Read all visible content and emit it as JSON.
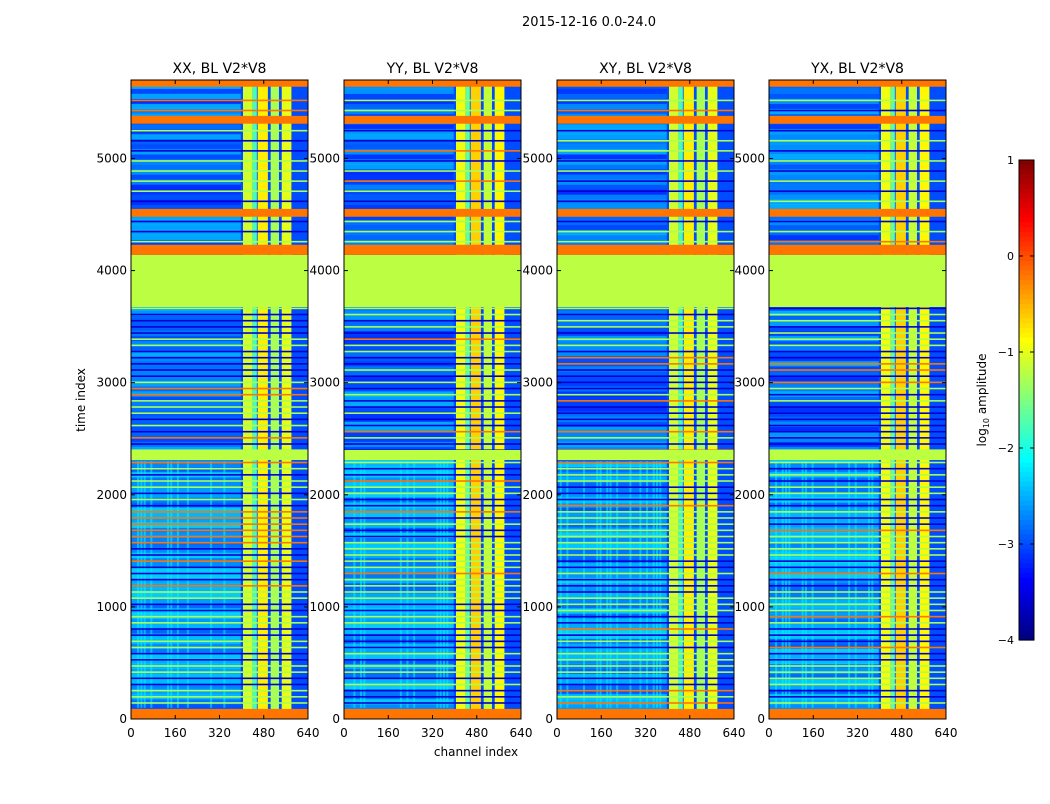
{
  "chart_data": {
    "type": "heatmap",
    "title": "2015-12-16 0.0-24.0",
    "xlabel": "channel index",
    "ylabel": "time index",
    "xlim": [
      0,
      640
    ],
    "ylim": [
      0,
      5700
    ],
    "xticks": [
      0,
      160,
      320,
      480,
      640
    ],
    "yticks": [
      0,
      1000,
      2000,
      3000,
      4000,
      5000
    ],
    "panels": [
      {
        "title": "XX, BL V2*V8"
      },
      {
        "title": "YY, BL V2*V8"
      },
      {
        "title": "XY, BL V2*V8"
      },
      {
        "title": "YX, BL V2*V8"
      }
    ],
    "colorbar": {
      "label": "log",
      "label_sub": "10",
      "label_rest": " amplitude",
      "range": [
        -4,
        1
      ],
      "ticks": [
        "1",
        "0",
        "−1",
        "−2",
        "−3",
        "−4"
      ],
      "colormap": "jet"
    },
    "background_level": -3.0,
    "flagged_time_rows": [
      {
        "from": 0,
        "to": 90,
        "level": -0.2
      },
      {
        "from": 2310,
        "to": 2400,
        "level": -1.2
      },
      {
        "from": 3675,
        "to": 4140,
        "level": -1.2
      },
      {
        "from": 4140,
        "to": 4230,
        "level": -0.2
      },
      {
        "from": 4480,
        "to": 4550,
        "level": -0.2
      },
      {
        "from": 5310,
        "to": 5380,
        "level": -0.2
      },
      {
        "from": 5640,
        "to": 5700,
        "level": -0.2
      }
    ],
    "bright_channel_bands": [
      {
        "from": 405,
        "to": 440,
        "level": -1.1
      },
      {
        "from": 440,
        "to": 455,
        "level": -1.8
      },
      {
        "from": 458,
        "to": 495,
        "level": -0.8
      },
      {
        "from": 505,
        "to": 535,
        "level": -1.3
      },
      {
        "from": 545,
        "to": 580,
        "level": -1.0
      }
    ]
  }
}
